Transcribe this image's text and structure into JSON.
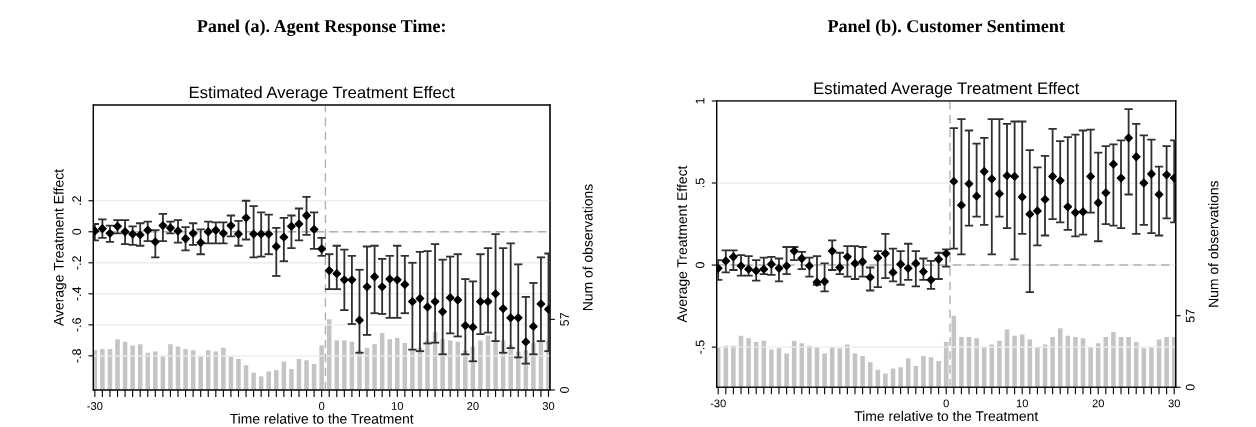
{
  "chart_data": [
    {
      "type": "scatter",
      "subtitle": "Panel (a). Agent Response Time:",
      "title": "Estimated Average Treatment Effect",
      "xlabel": "Time relative to the Treatment",
      "ylabel": "Average Treatment Effect",
      "y2label": "Num of observations",
      "x": [
        -30,
        -29,
        -28,
        -27,
        -26,
        -25,
        -24,
        -23,
        -22,
        -21,
        -20,
        -19,
        -18,
        -17,
        -16,
        -15,
        -14,
        -13,
        -12,
        -11,
        -10,
        -9,
        -8,
        -7,
        -6,
        -5,
        -4,
        -3,
        -2,
        -1,
        0,
        1,
        2,
        3,
        4,
        5,
        6,
        7,
        8,
        9,
        10,
        11,
        12,
        13,
        14,
        15,
        16,
        17,
        18,
        19,
        20,
        21,
        22,
        23,
        24,
        25,
        26,
        27,
        28,
        29,
        30
      ],
      "series": [
        {
          "type": "bar",
          "axis": "y2",
          "color": "#c4c4c4",
          "values": [
            32,
            33,
            33,
            41,
            39,
            36,
            37,
            30,
            31,
            27,
            37,
            35,
            33,
            32,
            27,
            32,
            31,
            34,
            27,
            25,
            20,
            14,
            11,
            15,
            16,
            23,
            17,
            25,
            24,
            21,
            36,
            57,
            40,
            40,
            39,
            32,
            34,
            37,
            46,
            41,
            42,
            38,
            32,
            34,
            40,
            47,
            41,
            40,
            39,
            32,
            35,
            40,
            44,
            40,
            40,
            36,
            31,
            32,
            38,
            40,
            40
          ]
        },
        {
          "marker": "diamond",
          "color": "#000000",
          "values": [
            0.005,
            0.02,
            -0.01,
            0.035,
            0,
            -0.015,
            -0.02,
            0.01,
            -0.065,
            0.04,
            0.025,
            0.005,
            -0.045,
            -0.01,
            -0.07,
            0,
            0.01,
            -0.01,
            0.04,
            -0.015,
            0.09,
            -0.015,
            -0.015,
            -0.015,
            -0.095,
            -0.035,
            0.035,
            0.05,
            0.105,
            0.015,
            -0.11,
            -0.25,
            -0.27,
            -0.31,
            -0.31,
            -0.57,
            -0.355,
            -0.29,
            -0.355,
            -0.305,
            -0.31,
            -0.34,
            -0.45,
            -0.43,
            -0.485,
            -0.45,
            -0.515,
            -0.425,
            -0.44,
            -0.605,
            -0.615,
            -0.45,
            -0.45,
            -0.4,
            -0.495,
            -0.555,
            -0.555,
            -0.71,
            -0.61,
            -0.465,
            -0.5
          ],
          "errors": [
            [
              -0.055,
              0.05
            ],
            [
              -0.04,
              0.08
            ],
            [
              -0.065,
              0.04
            ],
            [
              -0.01,
              0.075
            ],
            [
              -0.08,
              0.075
            ],
            [
              -0.085,
              0.035
            ],
            [
              -0.09,
              0.055
            ],
            [
              -0.06,
              0.065
            ],
            [
              -0.165,
              0.01
            ],
            [
              -0.06,
              0.115
            ],
            [
              -0.01,
              0.065
            ],
            [
              -0.07,
              0.075
            ],
            [
              -0.12,
              0.03
            ],
            [
              -0.085,
              0.055
            ],
            [
              -0.145,
              0.015
            ],
            [
              -0.075,
              0.065
            ],
            [
              -0.075,
              0.06
            ],
            [
              -0.075,
              0.06
            ],
            [
              -0.03,
              0.105
            ],
            [
              -0.09,
              0.07
            ],
            [
              -0.05,
              0.2
            ],
            [
              -0.165,
              0.165
            ],
            [
              -0.16,
              0.125
            ],
            [
              -0.145,
              0.11
            ],
            [
              -0.285,
              0.025
            ],
            [
              -0.19,
              0.09
            ],
            [
              -0.105,
              0.105
            ],
            [
              -0.055,
              0.15
            ],
            [
              -0.02,
              0.225
            ],
            [
              -0.11,
              0.125
            ],
            [
              -0.155,
              -0.04
            ],
            [
              -0.37,
              -0.145
            ],
            [
              -0.37,
              -0.09
            ],
            [
              -0.505,
              -0.115
            ],
            [
              -0.595,
              -0.155
            ],
            [
              -0.78,
              -0.245
            ],
            [
              -0.665,
              -0.095
            ],
            [
              -0.525,
              -0.09
            ],
            [
              -0.53,
              -0.175
            ],
            [
              -0.555,
              -0.155
            ],
            [
              -0.555,
              -0.09
            ],
            [
              -0.525,
              -0.155
            ],
            [
              -0.76,
              -0.2
            ],
            [
              -0.77,
              -0.13
            ],
            [
              -0.72,
              -0.125
            ],
            [
              -0.715,
              -0.08
            ],
            [
              -0.79,
              -0.18
            ],
            [
              -0.655,
              -0.16
            ],
            [
              -0.675,
              -0.145
            ],
            [
              -0.79,
              -0.305
            ],
            [
              -0.835,
              -0.32
            ],
            [
              -0.66,
              -0.145
            ],
            [
              -0.65,
              -0.105
            ],
            [
              -0.705,
              -0.015
            ],
            [
              -0.78,
              -0.105
            ],
            [
              -0.75,
              -0.075
            ],
            [
              -0.81,
              -0.21
            ],
            [
              -0.85,
              -0.42
            ],
            [
              -0.79,
              -0.33
            ],
            [
              -0.705,
              -0.165
            ],
            [
              -0.77,
              -0.14
            ]
          ]
        }
      ],
      "xlim": [
        -30.2,
        30.2
      ],
      "xticks": [
        -30,
        {
          "value": -29,
          "label": null
        },
        {
          "value": -28,
          "label": null
        },
        {
          "value": -27,
          "label": null
        },
        {
          "value": -26,
          "label": null
        },
        {
          "value": -25,
          "label": null
        },
        {
          "value": -24,
          "label": null
        },
        {
          "value": -23,
          "label": null
        },
        {
          "value": -22,
          "label": null
        },
        {
          "value": -21,
          "label": null
        },
        {
          "value": -20,
          "label": null
        },
        {
          "value": -19,
          "label": null
        },
        {
          "value": -18,
          "label": null
        },
        {
          "value": -17,
          "label": null
        },
        {
          "value": -16,
          "label": null
        },
        {
          "value": -15,
          "label": null
        },
        {
          "value": -14,
          "label": null
        },
        {
          "value": -13,
          "label": null
        },
        {
          "value": -12,
          "label": null
        },
        {
          "value": -11,
          "label": null
        },
        {
          "value": -10,
          "label": null
        },
        {
          "value": -9,
          "label": null
        },
        {
          "value": -8,
          "label": null
        },
        {
          "value": -7,
          "label": null
        },
        {
          "value": -6,
          "label": null
        },
        {
          "value": -5,
          "label": null
        },
        {
          "value": -4,
          "label": null
        },
        {
          "value": -3,
          "label": null
        },
        {
          "value": -2,
          "label": null
        },
        {
          "value": -1,
          "label": null
        },
        0,
        {
          "value": 1,
          "label": null
        },
        {
          "value": 2,
          "label": null
        },
        {
          "value": 3,
          "label": null
        },
        {
          "value": 4,
          "label": null
        },
        {
          "value": 5,
          "label": null
        },
        {
          "value": 6,
          "label": null
        },
        {
          "value": 7,
          "label": null
        },
        {
          "value": 8,
          "label": null
        },
        {
          "value": 9,
          "label": null
        },
        10,
        {
          "value": 11,
          "label": null
        },
        {
          "value": 12,
          "label": null
        },
        {
          "value": 13,
          "label": null
        },
        {
          "value": 14,
          "label": null
        },
        {
          "value": 15,
          "label": null
        },
        {
          "value": 16,
          "label": null
        },
        {
          "value": 17,
          "label": null
        },
        {
          "value": 18,
          "label": null
        },
        {
          "value": 19,
          "label": null
        },
        20,
        {
          "value": 21,
          "label": null
        },
        {
          "value": 22,
          "label": null
        },
        {
          "value": 23,
          "label": null
        },
        {
          "value": 24,
          "label": null
        },
        {
          "value": 25,
          "label": null
        },
        {
          "value": 26,
          "label": null
        },
        {
          "value": 27,
          "label": null
        },
        {
          "value": 28,
          "label": null
        },
        {
          "value": 29,
          "label": null
        },
        30
      ],
      "ylim": [
        -1.02,
        0.817
      ],
      "yticks": [
        {
          "value": 0.2,
          "label": ".2"
        },
        0,
        {
          "value": -0.2,
          "label": "-.2"
        },
        {
          "value": -0.4,
          "label": "-.4"
        },
        {
          "value": -0.6,
          "label": "-.6"
        },
        {
          "value": -0.8,
          "label": "-.8"
        }
      ],
      "y2lim": [
        0,
        230
      ],
      "y2ticks": [
        0,
        57
      ],
      "ref_lines": [
        {
          "axis": "x",
          "value": 0.5,
          "color": "#b0b0b0",
          "line_style": "dashed"
        },
        {
          "axis": "y",
          "value": 0,
          "color": "#b0b0b0",
          "line_style": "dashed"
        }
      ],
      "grid": "y",
      "legend": false
    },
    {
      "type": "scatter",
      "subtitle": "Panel (b). Customer Sentiment",
      "title": "Estimated Average Treatment Effect",
      "xlabel": "Time relative to the Treatment",
      "ylabel": "Average Treatment Effect",
      "y2label": "Num of observations",
      "x": [
        -30,
        -29,
        -28,
        -27,
        -26,
        -25,
        -24,
        -23,
        -22,
        -21,
        -20,
        -19,
        -18,
        -17,
        -16,
        -15,
        -14,
        -13,
        -12,
        -11,
        -10,
        -9,
        -8,
        -7,
        -6,
        -5,
        -4,
        -3,
        -2,
        -1,
        0,
        1,
        2,
        3,
        4,
        5,
        6,
        7,
        8,
        9,
        10,
        11,
        12,
        13,
        14,
        15,
        16,
        17,
        18,
        19,
        20,
        21,
        22,
        23,
        24,
        25,
        26,
        27,
        28,
        29,
        30
      ],
      "series": [
        {
          "type": "bar",
          "axis": "y2",
          "color": "#c4c4c4",
          "values": [
            32,
            33,
            33,
            41,
            39,
            36,
            37,
            30,
            31,
            27,
            37,
            35,
            33,
            32,
            27,
            32,
            31,
            34,
            27,
            25,
            20,
            14,
            11,
            15,
            16,
            23,
            17,
            25,
            24,
            21,
            36,
            57,
            40,
            40,
            39,
            32,
            34,
            37,
            46,
            41,
            42,
            38,
            32,
            34,
            40,
            47,
            41,
            40,
            39,
            32,
            35,
            40,
            44,
            40,
            40,
            36,
            31,
            32,
            38,
            40,
            40
          ]
        },
        {
          "marker": "diamond",
          "color": "#000000",
          "values": [
            -0.02,
            0.025,
            0.05,
            -0.005,
            -0.025,
            -0.035,
            -0.025,
            0.005,
            -0.02,
            -0.005,
            0.085,
            0.04,
            -0.005,
            -0.105,
            -0.1,
            0.085,
            -0.015,
            0.05,
            0.01,
            0.02,
            -0.075,
            0.045,
            0.07,
            -0.045,
            0.005,
            -0.02,
            0.01,
            -0.04,
            -0.09,
            0.035,
            0.07,
            0.51,
            0.365,
            0.495,
            0.42,
            0.57,
            0.525,
            0.435,
            0.545,
            0.54,
            0.415,
            0.31,
            0.33,
            0.4,
            0.54,
            0.515,
            0.355,
            0.32,
            0.325,
            0.54,
            0.38,
            0.44,
            0.615,
            0.53,
            0.775,
            0.66,
            0.5,
            0.555,
            0.43,
            0.55,
            0.53
          ],
          "errors": [
            [
              -0.09,
              0.03
            ],
            [
              -0.045,
              0.09
            ],
            [
              -0.03,
              0.09
            ],
            [
              -0.065,
              0.06
            ],
            [
              -0.065,
              0.055
            ],
            [
              -0.095,
              0.03
            ],
            [
              -0.055,
              0.045
            ],
            [
              -0.06,
              0.05
            ],
            [
              -0.1,
              0.04
            ],
            [
              -0.055,
              0.11
            ],
            [
              0.03,
              0.11
            ],
            [
              -0.025,
              0.08
            ],
            [
              -0.07,
              0.045
            ],
            [
              -0.12,
              0.055
            ],
            [
              -0.16,
              0.01
            ],
            [
              -0.03,
              0.15
            ],
            [
              -0.055,
              0.075
            ],
            [
              -0.07,
              0.115
            ],
            [
              -0.085,
              0.115
            ],
            [
              -0.07,
              0.11
            ],
            [
              -0.155,
              -0.015
            ],
            [
              -0.135,
              0.085
            ],
            [
              -0.08,
              0.19
            ],
            [
              -0.1,
              0.1
            ],
            [
              -0.12,
              0.085
            ],
            [
              -0.09,
              0.13
            ],
            [
              -0.13,
              0.085
            ],
            [
              -0.09,
              0.04
            ],
            [
              -0.145,
              0.025
            ],
            [
              -0.085,
              0.075
            ],
            [
              -0.01,
              0.095
            ],
            [
              0.1,
              0.835
            ],
            [
              0.065,
              0.89
            ],
            [
              0.24,
              0.82
            ],
            [
              0.295,
              0.74
            ],
            [
              0.245,
              0.775
            ],
            [
              0.065,
              0.89
            ],
            [
              0.295,
              0.89
            ],
            [
              0.225,
              0.86
            ],
            [
              0.035,
              0.875
            ],
            [
              0.19,
              0.875
            ],
            [
              -0.165,
              0.7
            ],
            [
              0.12,
              0.595
            ],
            [
              0.18,
              0.665
            ],
            [
              0.28,
              0.83
            ],
            [
              0.26,
              0.755
            ],
            [
              0.215,
              0.78
            ],
            [
              0.175,
              0.795
            ],
            [
              0.185,
              0.82
            ],
            [
              0.32,
              0.825
            ],
            [
              0.145,
              0.685
            ],
            [
              0.25,
              0.725
            ],
            [
              0.24,
              0.735
            ],
            [
              0.225,
              0.76
            ],
            [
              0.43,
              0.95
            ],
            [
              0.19,
              0.86
            ],
            [
              0.245,
              0.79
            ],
            [
              0.195,
              0.765
            ],
            [
              0.18,
              0.6
            ],
            [
              0.285,
              0.725
            ],
            [
              0.26,
              0.76
            ]
          ]
        }
      ],
      "xlim": [
        -30.2,
        30.2
      ],
      "xticks": [
        -30,
        {
          "value": -29,
          "label": null
        },
        {
          "value": -28,
          "label": null
        },
        {
          "value": -27,
          "label": null
        },
        {
          "value": -26,
          "label": null
        },
        {
          "value": -25,
          "label": null
        },
        {
          "value": -24,
          "label": null
        },
        {
          "value": -23,
          "label": null
        },
        {
          "value": -22,
          "label": null
        },
        {
          "value": -21,
          "label": null
        },
        {
          "value": -20,
          "label": null
        },
        {
          "value": -19,
          "label": null
        },
        {
          "value": -18,
          "label": null
        },
        {
          "value": -17,
          "label": null
        },
        {
          "value": -16,
          "label": null
        },
        {
          "value": -15,
          "label": null
        },
        {
          "value": -14,
          "label": null
        },
        {
          "value": -13,
          "label": null
        },
        {
          "value": -12,
          "label": null
        },
        {
          "value": -11,
          "label": null
        },
        {
          "value": -10,
          "label": null
        },
        {
          "value": -9,
          "label": null
        },
        {
          "value": -8,
          "label": null
        },
        {
          "value": -7,
          "label": null
        },
        {
          "value": -6,
          "label": null
        },
        {
          "value": -5,
          "label": null
        },
        {
          "value": -4,
          "label": null
        },
        {
          "value": -3,
          "label": null
        },
        {
          "value": -2,
          "label": null
        },
        {
          "value": -1,
          "label": null
        },
        0,
        {
          "value": 1,
          "label": null
        },
        {
          "value": 2,
          "label": null
        },
        {
          "value": 3,
          "label": null
        },
        {
          "value": 4,
          "label": null
        },
        {
          "value": 5,
          "label": null
        },
        {
          "value": 6,
          "label": null
        },
        {
          "value": 7,
          "label": null
        },
        {
          "value": 8,
          "label": null
        },
        {
          "value": 9,
          "label": null
        },
        10,
        {
          "value": 11,
          "label": null
        },
        {
          "value": 12,
          "label": null
        },
        {
          "value": 13,
          "label": null
        },
        {
          "value": 14,
          "label": null
        },
        {
          "value": 15,
          "label": null
        },
        {
          "value": 16,
          "label": null
        },
        {
          "value": 17,
          "label": null
        },
        {
          "value": 18,
          "label": null
        },
        {
          "value": 19,
          "label": null
        },
        20,
        {
          "value": 21,
          "label": null
        },
        {
          "value": 22,
          "label": null
        },
        {
          "value": 23,
          "label": null
        },
        {
          "value": 24,
          "label": null
        },
        {
          "value": 25,
          "label": null
        },
        {
          "value": 26,
          "label": null
        },
        {
          "value": 27,
          "label": null
        },
        {
          "value": 28,
          "label": null
        },
        {
          "value": 29,
          "label": null
        },
        30
      ],
      "ylim": [
        -0.745,
        1.0
      ],
      "yticks": [
        1,
        {
          "value": 0.5,
          "label": ".5"
        },
        0,
        {
          "value": -0.5,
          "label": "-.5"
        }
      ],
      "y2lim": [
        0,
        228
      ],
      "y2ticks": [
        0,
        57
      ],
      "ref_lines": [
        {
          "axis": "x",
          "value": 0.5,
          "color": "#b0b0b0",
          "line_style": "dashed"
        },
        {
          "axis": "y",
          "value": 0,
          "color": "#b0b0b0",
          "line_style": "dashed"
        }
      ],
      "grid": "y",
      "legend": false
    }
  ]
}
